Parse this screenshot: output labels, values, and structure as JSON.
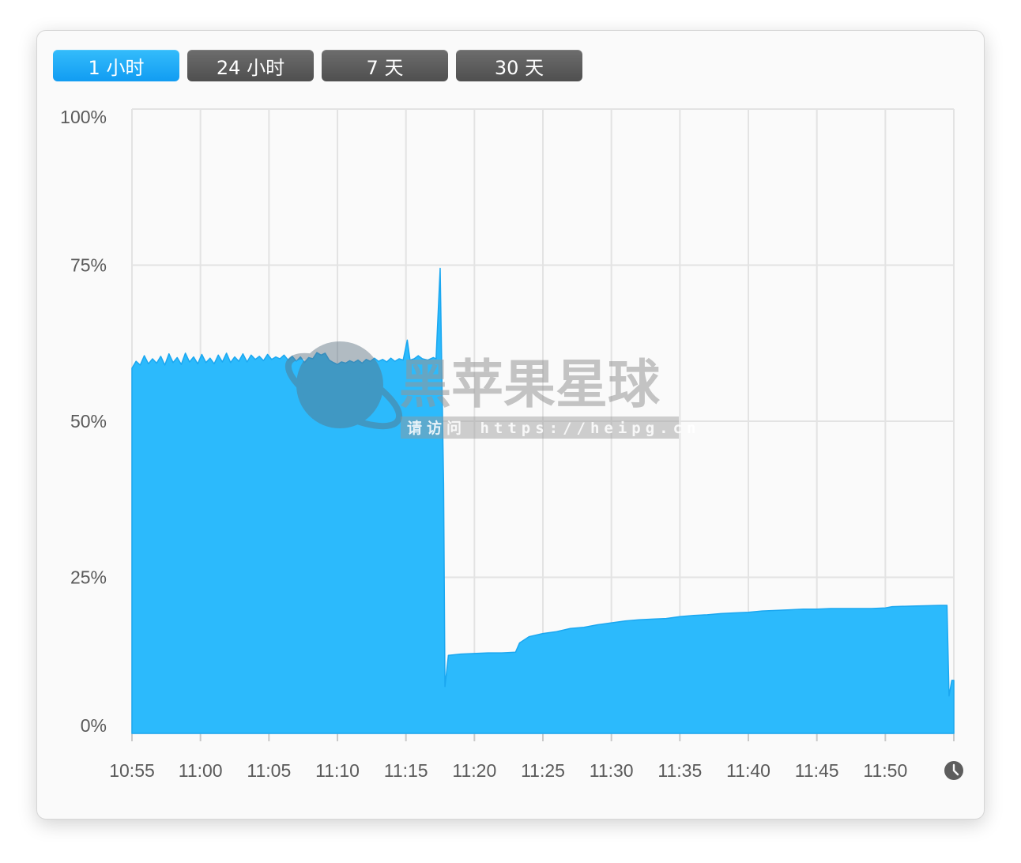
{
  "tabs": [
    {
      "label": "1 小时",
      "active": true
    },
    {
      "label": "24 小时",
      "active": false
    },
    {
      "label": "7 天",
      "active": false
    },
    {
      "label": "30 天",
      "active": false
    }
  ],
  "watermark": {
    "title": "黑苹果星球",
    "url": "请访问 https://heipg.cn"
  },
  "colors": {
    "fill": "#2cbafc",
    "stroke": "#1ba7f0",
    "grid": "#e3e3e3",
    "active_tab": "#1eaaf6",
    "inactive_tab": "#5c5c5c"
  },
  "icons": {
    "time_range": "clock-icon"
  },
  "chart_data": {
    "type": "area",
    "title": "",
    "xlabel": "",
    "ylabel": "",
    "x_unit": "minutes",
    "x_start": "10:55",
    "xlim": [
      0,
      60
    ],
    "ylim": [
      0,
      100
    ],
    "y_ticks": [
      {
        "value": 100,
        "label": "100%"
      },
      {
        "value": 75,
        "label": "75%"
      },
      {
        "value": 50,
        "label": "50%"
      },
      {
        "value": 25,
        "label": "25%"
      },
      {
        "value": 0,
        "label": "0%"
      }
    ],
    "x_ticks": [
      {
        "value": 0,
        "label": "10:55"
      },
      {
        "value": 5,
        "label": "11:00"
      },
      {
        "value": 10,
        "label": "11:05"
      },
      {
        "value": 15,
        "label": "11:10"
      },
      {
        "value": 20,
        "label": "11:15"
      },
      {
        "value": 25,
        "label": "11:20"
      },
      {
        "value": 30,
        "label": "11:25"
      },
      {
        "value": 35,
        "label": "11:30"
      },
      {
        "value": 40,
        "label": "11:35"
      },
      {
        "value": 45,
        "label": "11:40"
      },
      {
        "value": 50,
        "label": "11:45"
      },
      {
        "value": 55,
        "label": "11:50"
      }
    ],
    "grid": true,
    "legend": "none",
    "series": [
      {
        "points": [
          [
            0.0,
            58.5
          ],
          [
            0.3,
            59.6
          ],
          [
            0.6,
            59.0
          ],
          [
            0.9,
            60.5
          ],
          [
            1.2,
            59.2
          ],
          [
            1.5,
            60.0
          ],
          [
            1.8,
            59.3
          ],
          [
            2.1,
            60.4
          ],
          [
            2.4,
            59.0
          ],
          [
            2.7,
            60.8
          ],
          [
            3.0,
            59.4
          ],
          [
            3.3,
            60.2
          ],
          [
            3.6,
            59.1
          ],
          [
            3.9,
            60.9
          ],
          [
            4.2,
            59.5
          ],
          [
            4.5,
            60.3
          ],
          [
            4.8,
            59.2
          ],
          [
            5.1,
            60.7
          ],
          [
            5.4,
            59.4
          ],
          [
            5.7,
            60.1
          ],
          [
            6.0,
            59.2
          ],
          [
            6.3,
            60.6
          ],
          [
            6.6,
            59.5
          ],
          [
            6.9,
            60.9
          ],
          [
            7.2,
            59.4
          ],
          [
            7.5,
            60.3
          ],
          [
            7.8,
            59.6
          ],
          [
            8.1,
            60.8
          ],
          [
            8.4,
            59.5
          ],
          [
            8.7,
            60.6
          ],
          [
            9.0,
            59.9
          ],
          [
            9.3,
            60.4
          ],
          [
            9.6,
            59.7
          ],
          [
            9.9,
            60.7
          ],
          [
            10.2,
            59.9
          ],
          [
            10.5,
            60.3
          ],
          [
            10.8,
            60.0
          ],
          [
            11.1,
            60.6
          ],
          [
            11.4,
            59.8
          ],
          [
            11.7,
            60.4
          ],
          [
            12.0,
            59.6
          ],
          [
            12.3,
            60.3
          ],
          [
            12.6,
            59.4
          ],
          [
            12.9,
            60.2
          ],
          [
            13.2,
            60.0
          ],
          [
            13.5,
            61.0
          ],
          [
            13.8,
            60.6
          ],
          [
            14.1,
            60.9
          ],
          [
            14.4,
            59.8
          ],
          [
            14.7,
            59.4
          ],
          [
            15.0,
            59.1
          ],
          [
            15.3,
            59.5
          ],
          [
            15.6,
            59.3
          ],
          [
            15.9,
            59.7
          ],
          [
            16.2,
            59.4
          ],
          [
            16.5,
            59.8
          ],
          [
            16.8,
            59.3
          ],
          [
            17.1,
            59.9
          ],
          [
            17.4,
            59.6
          ],
          [
            17.7,
            60.1
          ],
          [
            18.0,
            59.6
          ],
          [
            18.3,
            59.9
          ],
          [
            18.6,
            59.5
          ],
          [
            18.9,
            60.1
          ],
          [
            19.2,
            59.6
          ],
          [
            19.5,
            60.0
          ],
          [
            19.8,
            59.8
          ],
          [
            20.1,
            63.0
          ],
          [
            20.3,
            59.8
          ],
          [
            20.6,
            60.0
          ],
          [
            20.9,
            60.5
          ],
          [
            21.2,
            60.0
          ],
          [
            21.6,
            59.8
          ],
          [
            22.0,
            60.2
          ],
          [
            22.2,
            60.0
          ],
          [
            22.5,
            74.5
          ],
          [
            22.75,
            40.0
          ],
          [
            22.85,
            7.5
          ],
          [
            23.1,
            12.5
          ],
          [
            24.0,
            12.7
          ],
          [
            25.0,
            12.8
          ],
          [
            26.0,
            12.9
          ],
          [
            27.0,
            12.9
          ],
          [
            28.0,
            13.0
          ],
          [
            28.3,
            14.5
          ],
          [
            29.0,
            15.5
          ],
          [
            30.0,
            16.0
          ],
          [
            31.0,
            16.3
          ],
          [
            32.0,
            16.8
          ],
          [
            33.0,
            17.0
          ],
          [
            34.0,
            17.4
          ],
          [
            35.0,
            17.7
          ],
          [
            36.0,
            18.0
          ],
          [
            37.0,
            18.2
          ],
          [
            38.0,
            18.3
          ],
          [
            39.0,
            18.4
          ],
          [
            40.0,
            18.7
          ],
          [
            41.0,
            18.9
          ],
          [
            42.0,
            19.0
          ],
          [
            43.0,
            19.2
          ],
          [
            44.0,
            19.3
          ],
          [
            45.0,
            19.4
          ],
          [
            46.0,
            19.6
          ],
          [
            47.0,
            19.7
          ],
          [
            48.0,
            19.8
          ],
          [
            49.0,
            19.9
          ],
          [
            50.0,
            19.9
          ],
          [
            51.0,
            20.0
          ],
          [
            52.0,
            20.0
          ],
          [
            53.0,
            20.0
          ],
          [
            54.0,
            20.0
          ],
          [
            55.0,
            20.1
          ],
          [
            55.5,
            20.3
          ],
          [
            57.0,
            20.4
          ],
          [
            59.0,
            20.5
          ],
          [
            59.5,
            20.5
          ],
          [
            59.65,
            6.0
          ],
          [
            59.85,
            8.5
          ],
          [
            60.0,
            8.5
          ]
        ]
      }
    ]
  }
}
